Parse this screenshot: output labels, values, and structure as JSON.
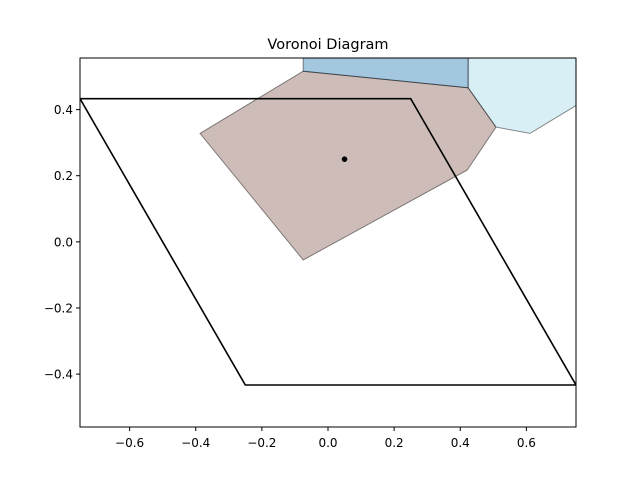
{
  "chart_data": {
    "type": "voronoi",
    "title": "Voronoi Diagram",
    "xlabel": "",
    "ylabel": "",
    "xlim": [
      -0.75,
      0.75
    ],
    "ylim": [
      -0.56,
      0.556
    ],
    "xticks": [
      -0.6,
      -0.4,
      -0.2,
      0.0,
      0.2,
      0.4,
      0.6
    ],
    "xtick_labels": [
      "−0.6",
      "−0.4",
      "−0.2",
      "0.0",
      "0.2",
      "0.4",
      "0.6"
    ],
    "yticks": [
      -0.4,
      -0.2,
      0.0,
      0.2,
      0.4
    ],
    "ytick_labels": [
      "−0.4",
      "−0.2",
      "0.0",
      "0.2",
      "0.4"
    ],
    "grid": false,
    "regions": [
      {
        "color": "#b89f99",
        "opacity": 0.7,
        "points": [
          [
            -0.387,
            0.328
          ],
          [
            -0.075,
            0.516
          ],
          [
            0.424,
            0.466
          ],
          [
            0.508,
            0.347
          ],
          [
            0.421,
            0.217
          ],
          [
            -0.075,
            -0.055
          ]
        ]
      },
      {
        "color": "#4a90c2",
        "opacity": 0.5,
        "points": [
          [
            -0.075,
            0.556
          ],
          [
            0.424,
            0.556
          ],
          [
            0.424,
            0.466
          ],
          [
            -0.075,
            0.516
          ]
        ]
      },
      {
        "color": "#b8e2ec",
        "opacity": 0.55,
        "points": [
          [
            0.424,
            0.556
          ],
          [
            0.75,
            0.556
          ],
          [
            0.75,
            0.412
          ],
          [
            0.611,
            0.328
          ],
          [
            0.508,
            0.347
          ],
          [
            0.424,
            0.466
          ]
        ]
      }
    ],
    "outline": [
      [
        -0.75,
        0.433
      ],
      [
        0.25,
        0.433
      ],
      [
        0.75,
        -0.433
      ],
      [
        -0.25,
        -0.433
      ]
    ],
    "points": [
      [
        0.05,
        0.25
      ]
    ]
  }
}
